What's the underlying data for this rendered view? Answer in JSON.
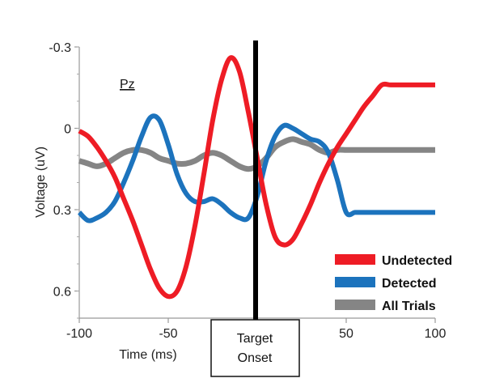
{
  "chart_data": {
    "type": "line",
    "title": "",
    "xlabel": "Time (ms)",
    "ylabel": "Voltage (uV)",
    "xlim": [
      -100,
      100
    ],
    "ylim": [
      -0.3,
      0.7
    ],
    "y_inverted": true,
    "xticks": [
      -100,
      -50,
      50,
      100
    ],
    "xtick_labels": [
      "-100",
      "-50",
      "50",
      "100"
    ],
    "yticks": [
      -0.3,
      0,
      0.3,
      0.6
    ],
    "ytick_labels": [
      "-0.3",
      "0",
      "0.3",
      "0.6"
    ],
    "grid": false,
    "legend_position": "bottom-right",
    "annotation": "Pz",
    "onset": {
      "x": 0,
      "label_line1": "Target",
      "label_line2": "Onset"
    },
    "series": [
      {
        "name": "Undetected",
        "color": "#ee1c25",
        "x": [
          -100,
          -95,
          -90,
          -85,
          -80,
          -75,
          -70,
          -65,
          -60,
          -55,
          -50,
          -45,
          -40,
          -35,
          -30,
          -25,
          -20,
          -15,
          -10,
          -5,
          0,
          5,
          10,
          15,
          20,
          25,
          30,
          35,
          40,
          45,
          50,
          55,
          60,
          65,
          70,
          75,
          80,
          85,
          90,
          95,
          100
        ],
        "values": [
          0.01,
          0.03,
          0.07,
          0.12,
          0.18,
          0.26,
          0.34,
          0.43,
          0.52,
          0.59,
          0.62,
          0.6,
          0.51,
          0.36,
          0.17,
          -0.03,
          -0.18,
          -0.26,
          -0.21,
          -0.06,
          0.11,
          0.28,
          0.4,
          0.43,
          0.41,
          0.35,
          0.28,
          0.2,
          0.13,
          0.07,
          0.02,
          -0.03,
          -0.08,
          -0.12,
          -0.16,
          -0.16,
          -0.16,
          -0.16,
          -0.16,
          -0.16,
          -0.16
        ]
      },
      {
        "name": "Detected",
        "color": "#1c73bd",
        "x": [
          -100,
          -95,
          -90,
          -85,
          -80,
          -75,
          -70,
          -65,
          -60,
          -55,
          -50,
          -45,
          -40,
          -35,
          -30,
          -25,
          -20,
          -15,
          -10,
          -5,
          0,
          5,
          10,
          15,
          20,
          25,
          30,
          35,
          40,
          45,
          50,
          55,
          60,
          65,
          70,
          75,
          80,
          85,
          90,
          95,
          100
        ],
        "values": [
          0.31,
          0.34,
          0.33,
          0.31,
          0.27,
          0.2,
          0.12,
          0.03,
          -0.04,
          -0.03,
          0.06,
          0.17,
          0.24,
          0.27,
          0.27,
          0.26,
          0.28,
          0.31,
          0.33,
          0.33,
          0.25,
          0.12,
          0.03,
          -0.01,
          0.0,
          0.02,
          0.04,
          0.05,
          0.09,
          0.19,
          0.31,
          0.31,
          0.31,
          0.31,
          0.31,
          0.31,
          0.31,
          0.31,
          0.31,
          0.31,
          0.31
        ]
      },
      {
        "name": "All Trials",
        "color": "#858585",
        "x": [
          -100,
          -95,
          -90,
          -85,
          -80,
          -75,
          -70,
          -65,
          -60,
          -55,
          -50,
          -45,
          -40,
          -35,
          -30,
          -25,
          -20,
          -15,
          -10,
          -5,
          0,
          5,
          10,
          15,
          20,
          25,
          30,
          35,
          40,
          45,
          50,
          55,
          60,
          65,
          70,
          75,
          80,
          85,
          90,
          95,
          100
        ],
        "values": [
          0.12,
          0.13,
          0.14,
          0.13,
          0.11,
          0.09,
          0.08,
          0.08,
          0.09,
          0.11,
          0.12,
          0.13,
          0.13,
          0.12,
          0.1,
          0.09,
          0.1,
          0.12,
          0.14,
          0.15,
          0.14,
          0.11,
          0.07,
          0.05,
          0.04,
          0.05,
          0.06,
          0.08,
          0.09,
          0.08,
          0.08,
          0.08,
          0.08,
          0.08,
          0.08,
          0.08,
          0.08,
          0.08,
          0.08,
          0.08,
          0.08
        ]
      }
    ]
  }
}
